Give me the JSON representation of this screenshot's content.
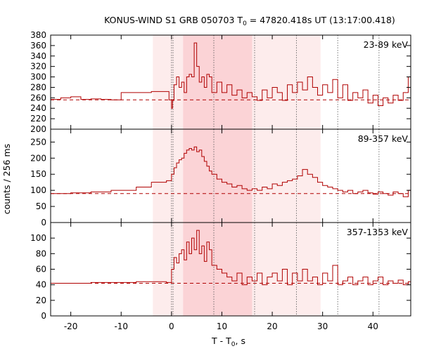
{
  "chart_data": {
    "type": "line",
    "title": "KONUS-WIND S1 GRB 050703 T",
    "title_sub": "0",
    "title_rest": " = 47820.418s UT (13:17:00.418)",
    "xlabel": "T - T",
    "xlabel_sub": "0",
    "xlabel_rest": ", s",
    "ylabel": "counts / 256 ms",
    "xlim": [
      -24,
      47.5
    ],
    "xticks": [
      -20,
      -10,
      0,
      10,
      20,
      30,
      40
    ],
    "line_color": "#b00000",
    "shade_regions": [
      {
        "x0": -3.7,
        "x1": 29.6,
        "color": "#fdecec"
      },
      {
        "x0": 2.3,
        "x1": 16.0,
        "color": "#fbd3d6"
      }
    ],
    "vlines": [
      0,
      0.3,
      8.4,
      16.5,
      24.8,
      33.0,
      41.2
    ],
    "panels": [
      {
        "label": "23-89 keV",
        "ylim": [
          200,
          380
        ],
        "yticks": [
          200,
          220,
          240,
          260,
          280,
          300,
          320,
          340,
          360,
          380
        ],
        "background": 256,
        "series": [
          {
            "x": -24,
            "y": 257
          },
          {
            "x": -22,
            "y": 260
          },
          {
            "x": -20,
            "y": 262
          },
          {
            "x": -18,
            "y": 257
          },
          {
            "x": -16,
            "y": 258
          },
          {
            "x": -14,
            "y": 257
          },
          {
            "x": -12,
            "y": 256
          },
          {
            "x": -10,
            "y": 270
          },
          {
            "x": -4,
            "y": 272
          },
          {
            "x": -0.5,
            "y": 256
          },
          {
            "x": 0,
            "y": 240
          },
          {
            "x": 0.2,
            "y": 255
          },
          {
            "x": 0.5,
            "y": 285
          },
          {
            "x": 1,
            "y": 300
          },
          {
            "x": 1.5,
            "y": 280
          },
          {
            "x": 2,
            "y": 290
          },
          {
            "x": 2.5,
            "y": 270
          },
          {
            "x": 3,
            "y": 300
          },
          {
            "x": 3.5,
            "y": 305
          },
          {
            "x": 4,
            "y": 300
          },
          {
            "x": 4.5,
            "y": 365
          },
          {
            "x": 5,
            "y": 320
          },
          {
            "x": 5.5,
            "y": 290
          },
          {
            "x": 6,
            "y": 300
          },
          {
            "x": 6.5,
            "y": 280
          },
          {
            "x": 7,
            "y": 305
          },
          {
            "x": 7.5,
            "y": 300
          },
          {
            "x": 8,
            "y": 270
          },
          {
            "x": 9,
            "y": 290
          },
          {
            "x": 10,
            "y": 270
          },
          {
            "x": 11,
            "y": 285
          },
          {
            "x": 12,
            "y": 265
          },
          {
            "x": 13,
            "y": 275
          },
          {
            "x": 14,
            "y": 260
          },
          {
            "x": 15,
            "y": 270
          },
          {
            "x": 16,
            "y": 262
          },
          {
            "x": 17,
            "y": 255
          },
          {
            "x": 18,
            "y": 275
          },
          {
            "x": 19,
            "y": 260
          },
          {
            "x": 20,
            "y": 280
          },
          {
            "x": 21,
            "y": 270
          },
          {
            "x": 22,
            "y": 255
          },
          {
            "x": 23,
            "y": 285
          },
          {
            "x": 24,
            "y": 270
          },
          {
            "x": 25,
            "y": 290
          },
          {
            "x": 26,
            "y": 275
          },
          {
            "x": 27,
            "y": 300
          },
          {
            "x": 28,
            "y": 280
          },
          {
            "x": 29,
            "y": 265
          },
          {
            "x": 30,
            "y": 285
          },
          {
            "x": 31,
            "y": 270
          },
          {
            "x": 32,
            "y": 295
          },
          {
            "x": 33,
            "y": 260
          },
          {
            "x": 34,
            "y": 285
          },
          {
            "x": 35,
            "y": 255
          },
          {
            "x": 36,
            "y": 270
          },
          {
            "x": 37,
            "y": 260
          },
          {
            "x": 38,
            "y": 275
          },
          {
            "x": 39,
            "y": 250
          },
          {
            "x": 40,
            "y": 265
          },
          {
            "x": 41,
            "y": 245
          },
          {
            "x": 42,
            "y": 260
          },
          {
            "x": 43,
            "y": 250
          },
          {
            "x": 44,
            "y": 265
          },
          {
            "x": 45,
            "y": 255
          },
          {
            "x": 46,
            "y": 270
          },
          {
            "x": 47,
            "y": 300
          }
        ]
      },
      {
        "label": "89-357 keV",
        "ylim": [
          0,
          290
        ],
        "yticks": [
          0,
          50,
          100,
          150,
          200,
          250
        ],
        "background": 90,
        "series": [
          {
            "x": -24,
            "y": 90
          },
          {
            "x": -20,
            "y": 92
          },
          {
            "x": -16,
            "y": 95
          },
          {
            "x": -12,
            "y": 100
          },
          {
            "x": -7,
            "y": 110
          },
          {
            "x": -4,
            "y": 125
          },
          {
            "x": -1,
            "y": 130
          },
          {
            "x": 0,
            "y": 150
          },
          {
            "x": 0.5,
            "y": 170
          },
          {
            "x": 1,
            "y": 185
          },
          {
            "x": 1.5,
            "y": 195
          },
          {
            "x": 2,
            "y": 200
          },
          {
            "x": 2.5,
            "y": 215
          },
          {
            "x": 3,
            "y": 225
          },
          {
            "x": 3.5,
            "y": 230
          },
          {
            "x": 4,
            "y": 225
          },
          {
            "x": 4.5,
            "y": 235
          },
          {
            "x": 5,
            "y": 220
          },
          {
            "x": 5.5,
            "y": 225
          },
          {
            "x": 6,
            "y": 205
          },
          {
            "x": 6.5,
            "y": 190
          },
          {
            "x": 7,
            "y": 175
          },
          {
            "x": 7.5,
            "y": 160
          },
          {
            "x": 8,
            "y": 150
          },
          {
            "x": 9,
            "y": 135
          },
          {
            "x": 10,
            "y": 125
          },
          {
            "x": 11,
            "y": 120
          },
          {
            "x": 12,
            "y": 110
          },
          {
            "x": 13,
            "y": 115
          },
          {
            "x": 14,
            "y": 105
          },
          {
            "x": 15,
            "y": 100
          },
          {
            "x": 16,
            "y": 105
          },
          {
            "x": 17,
            "y": 100
          },
          {
            "x": 18,
            "y": 110
          },
          {
            "x": 19,
            "y": 105
          },
          {
            "x": 20,
            "y": 120
          },
          {
            "x": 21,
            "y": 115
          },
          {
            "x": 22,
            "y": 125
          },
          {
            "x": 23,
            "y": 130
          },
          {
            "x": 24,
            "y": 135
          },
          {
            "x": 25,
            "y": 145
          },
          {
            "x": 26,
            "y": 165
          },
          {
            "x": 27,
            "y": 150
          },
          {
            "x": 28,
            "y": 140
          },
          {
            "x": 29,
            "y": 125
          },
          {
            "x": 30,
            "y": 115
          },
          {
            "x": 31,
            "y": 110
          },
          {
            "x": 32,
            "y": 105
          },
          {
            "x": 33,
            "y": 100
          },
          {
            "x": 34,
            "y": 95
          },
          {
            "x": 35,
            "y": 100
          },
          {
            "x": 36,
            "y": 90
          },
          {
            "x": 37,
            "y": 95
          },
          {
            "x": 38,
            "y": 100
          },
          {
            "x": 39,
            "y": 92
          },
          {
            "x": 40,
            "y": 88
          },
          {
            "x": 41,
            "y": 95
          },
          {
            "x": 42,
            "y": 90
          },
          {
            "x": 43,
            "y": 85
          },
          {
            "x": 44,
            "y": 95
          },
          {
            "x": 45,
            "y": 90
          },
          {
            "x": 46,
            "y": 80
          },
          {
            "x": 47,
            "y": 100
          }
        ]
      },
      {
        "label": "357-1353 keV",
        "ylim": [
          0,
          120
        ],
        "yticks": [
          0,
          20,
          40,
          60,
          80,
          100
        ],
        "background": 42,
        "series": [
          {
            "x": -24,
            "y": 42
          },
          {
            "x": -20,
            "y": 42
          },
          {
            "x": -16,
            "y": 43
          },
          {
            "x": -12,
            "y": 43
          },
          {
            "x": -7,
            "y": 44
          },
          {
            "x": -4,
            "y": 44
          },
          {
            "x": -1,
            "y": 43
          },
          {
            "x": 0,
            "y": 60
          },
          {
            "x": 0.5,
            "y": 75
          },
          {
            "x": 1,
            "y": 68
          },
          {
            "x": 1.5,
            "y": 80
          },
          {
            "x": 2,
            "y": 85
          },
          {
            "x": 2.5,
            "y": 72
          },
          {
            "x": 3,
            "y": 95
          },
          {
            "x": 3.5,
            "y": 80
          },
          {
            "x": 4,
            "y": 100
          },
          {
            "x": 4.5,
            "y": 85
          },
          {
            "x": 5,
            "y": 110
          },
          {
            "x": 5.5,
            "y": 80
          },
          {
            "x": 6,
            "y": 90
          },
          {
            "x": 6.5,
            "y": 70
          },
          {
            "x": 7,
            "y": 95
          },
          {
            "x": 7.5,
            "y": 85
          },
          {
            "x": 8,
            "y": 65
          },
          {
            "x": 9,
            "y": 60
          },
          {
            "x": 10,
            "y": 55
          },
          {
            "x": 11,
            "y": 50
          },
          {
            "x": 12,
            "y": 45
          },
          {
            "x": 13,
            "y": 55
          },
          {
            "x": 14,
            "y": 40
          },
          {
            "x": 15,
            "y": 50
          },
          {
            "x": 16,
            "y": 45
          },
          {
            "x": 17,
            "y": 55
          },
          {
            "x": 18,
            "y": 40
          },
          {
            "x": 19,
            "y": 50
          },
          {
            "x": 20,
            "y": 55
          },
          {
            "x": 21,
            "y": 45
          },
          {
            "x": 22,
            "y": 60
          },
          {
            "x": 23,
            "y": 40
          },
          {
            "x": 24,
            "y": 55
          },
          {
            "x": 25,
            "y": 45
          },
          {
            "x": 26,
            "y": 60
          },
          {
            "x": 27,
            "y": 45
          },
          {
            "x": 28,
            "y": 50
          },
          {
            "x": 29,
            "y": 40
          },
          {
            "x": 30,
            "y": 55
          },
          {
            "x": 31,
            "y": 45
          },
          {
            "x": 32,
            "y": 65
          },
          {
            "x": 33,
            "y": 40
          },
          {
            "x": 34,
            "y": 45
          },
          {
            "x": 35,
            "y": 50
          },
          {
            "x": 36,
            "y": 40
          },
          {
            "x": 37,
            "y": 45
          },
          {
            "x": 38,
            "y": 50
          },
          {
            "x": 39,
            "y": 40
          },
          {
            "x": 40,
            "y": 45
          },
          {
            "x": 41,
            "y": 50
          },
          {
            "x": 42,
            "y": 40
          },
          {
            "x": 43,
            "y": 45
          },
          {
            "x": 44,
            "y": 42
          },
          {
            "x": 45,
            "y": 46
          },
          {
            "x": 46,
            "y": 40
          },
          {
            "x": 47,
            "y": 44
          }
        ]
      }
    ]
  }
}
